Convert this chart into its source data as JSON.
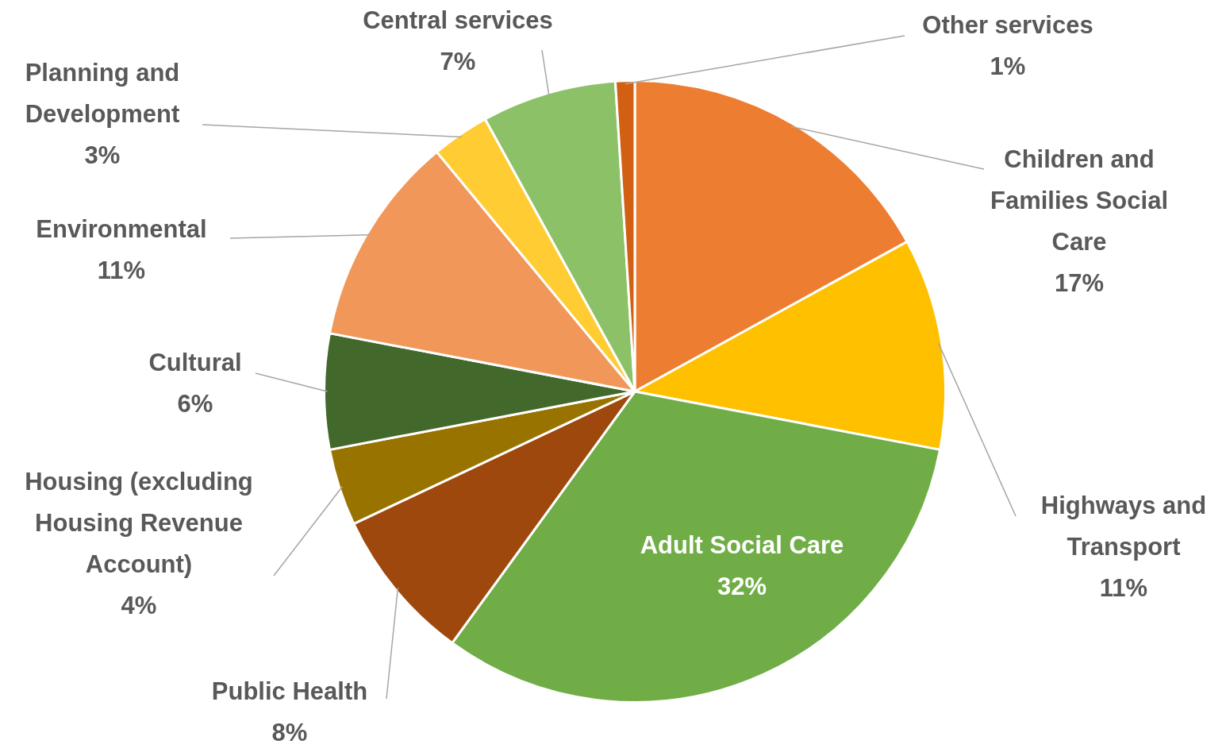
{
  "chart_data": {
    "type": "pie",
    "categories": [
      "Children and Families Social Care",
      "Highways and Transport",
      "Adult Social Care",
      "Public Health",
      "Housing (excluding Housing Revenue Account)",
      "Cultural",
      "Environmental",
      "Planning and Development",
      "Central services",
      "Other services"
    ],
    "values": [
      17,
      11,
      32,
      8,
      4,
      6,
      11,
      3,
      7,
      1
    ],
    "colors": [
      "#ed7d31",
      "#ffc000",
      "#70ad47",
      "#9e480e",
      "#997300",
      "#43682b",
      "#f1975a",
      "#ffcd33",
      "#8cc168",
      "#d26012"
    ],
    "value_labels": [
      "17%",
      "11%",
      "32%",
      "8%",
      "4%",
      "6%",
      "11%",
      "3%",
      "7%",
      "1%"
    ],
    "legend": false
  }
}
